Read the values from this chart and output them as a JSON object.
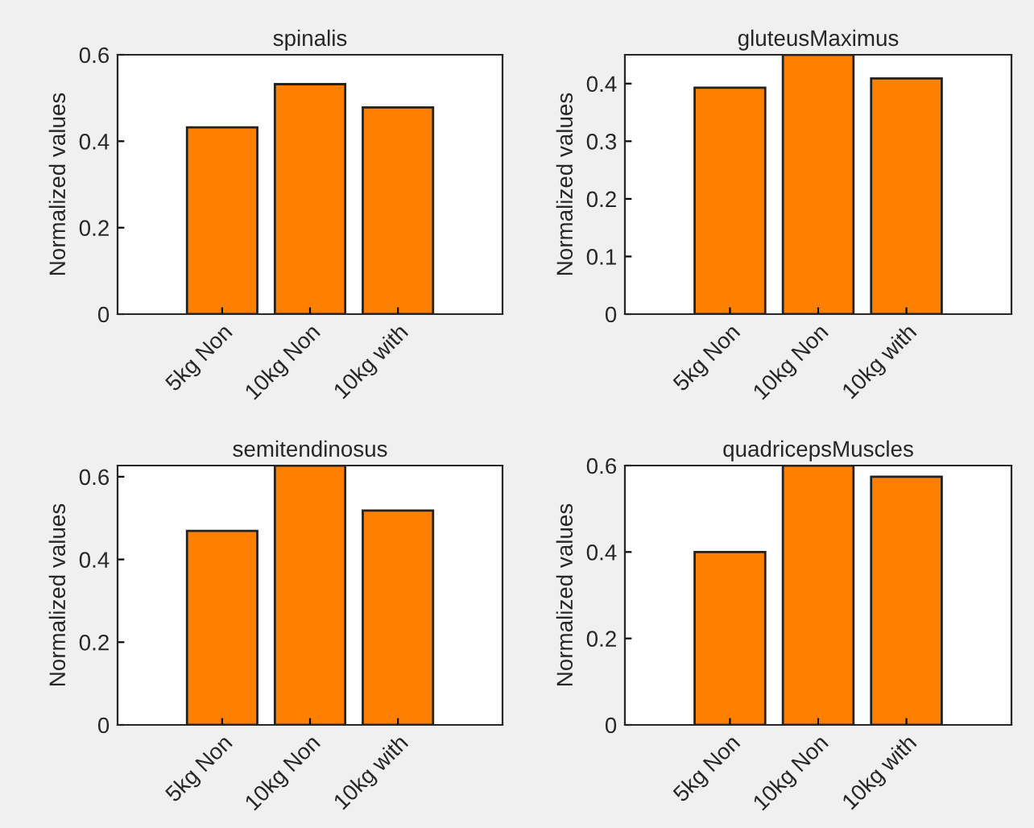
{
  "chart_data": [
    {
      "type": "bar",
      "title": "spinalis",
      "ylabel": "Normalized values",
      "categories": [
        "5kg Non",
        "10kg Non",
        "10kg with"
      ],
      "values": [
        0.432,
        0.532,
        0.478
      ],
      "color": "#ff8000",
      "ylim": [
        0,
        0.6
      ],
      "yticks": [
        0,
        0.2,
        0.4,
        0.6
      ],
      "grid": false
    },
    {
      "type": "bar",
      "title": "gluteusMaximus",
      "ylabel": "Normalized values",
      "categories": [
        "5kg Non",
        "10kg Non",
        "10kg with"
      ],
      "values": [
        0.393,
        0.45,
        0.409
      ],
      "color": "#ff8000",
      "ylim": [
        0,
        0.45
      ],
      "yticks": [
        0,
        0.1,
        0.2,
        0.3,
        0.4
      ],
      "grid": false
    },
    {
      "type": "bar",
      "title": "semitendinosus",
      "ylabel": "Normalized values",
      "categories": [
        "5kg Non",
        "10kg Non",
        "10kg with"
      ],
      "values": [
        0.469,
        0.627,
        0.518
      ],
      "color": "#ff8000",
      "ylim": [
        0,
        0.627
      ],
      "yticks": [
        0,
        0.2,
        0.4,
        0.6
      ],
      "grid": false
    },
    {
      "type": "bar",
      "title": "quadricepsMuscles",
      "ylabel": "Normalized values",
      "categories": [
        "5kg Non",
        "10kg Non",
        "10kg with"
      ],
      "values": [
        0.4,
        0.6,
        0.574
      ],
      "color": "#ff8000",
      "ylim": [
        0,
        0.6
      ],
      "yticks": [
        0,
        0.2,
        0.4,
        0.6
      ],
      "grid": false
    }
  ]
}
